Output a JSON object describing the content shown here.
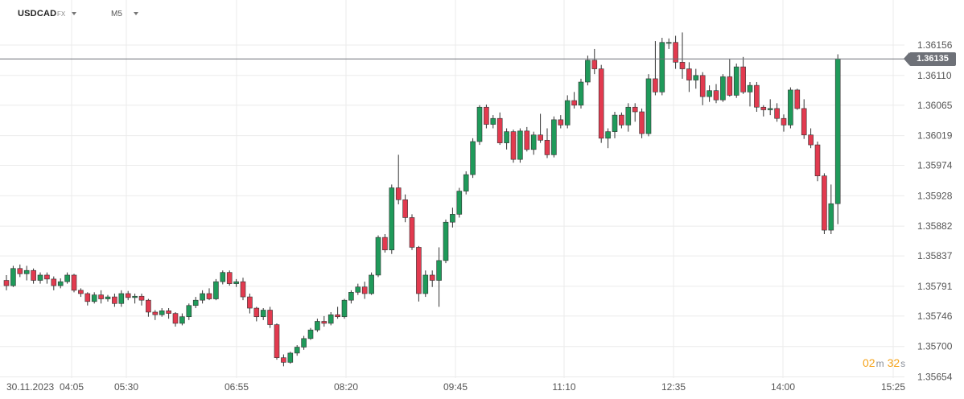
{
  "header": {
    "symbol": "USDCAD",
    "symbol_type": "FX",
    "timeframe": "M5"
  },
  "current_price": "1.36135",
  "countdown": {
    "minutes": "02",
    "minutes_unit": "m",
    "seconds": "32",
    "seconds_unit": "s"
  },
  "colors": {
    "up": "#1f9a5a",
    "down": "#e23a4f",
    "price_line": "#6e7178",
    "grid": "#ebebeb"
  },
  "chart_data": {
    "type": "candlestick",
    "instrument": "USDCAD",
    "interval": "M5",
    "y_ticks": [
      "1.36156",
      "1.36110",
      "1.36065",
      "1.36019",
      "1.35974",
      "1.35928",
      "1.35882",
      "1.35837",
      "1.35791",
      "1.35746",
      "1.35700",
      "1.35654"
    ],
    "ylim": [
      1.3564,
      1.3618
    ],
    "x_ticks": [
      "30.11.2023",
      "04:05",
      "05:30",
      "06:55",
      "08:20",
      "09:45",
      "11:10",
      "12:35",
      "14:00",
      "15:25"
    ],
    "last_price": 1.36135,
    "grid": true,
    "candles": [
      [
        1.358,
        1.35808,
        1.35785,
        1.35792
      ],
      [
        1.35792,
        1.35822,
        1.3579,
        1.35818
      ],
      [
        1.35818,
        1.35824,
        1.35805,
        1.3581
      ],
      [
        1.3581,
        1.35822,
        1.358,
        1.35815
      ],
      [
        1.35815,
        1.35818,
        1.35795,
        1.358
      ],
      [
        1.358,
        1.35812,
        1.35795,
        1.35808
      ],
      [
        1.35808,
        1.35812,
        1.35795,
        1.35802
      ],
      [
        1.35802,
        1.35806,
        1.35785,
        1.35792
      ],
      [
        1.35792,
        1.35803,
        1.35788,
        1.35798
      ],
      [
        1.35798,
        1.35812,
        1.35795,
        1.35808
      ],
      [
        1.35808,
        1.3581,
        1.35782,
        1.35785
      ],
      [
        1.35785,
        1.35788,
        1.35775,
        1.3578
      ],
      [
        1.3578,
        1.35782,
        1.35762,
        1.35768
      ],
      [
        1.35768,
        1.35782,
        1.35765,
        1.35778
      ],
      [
        1.35778,
        1.35785,
        1.35765,
        1.35772
      ],
      [
        1.35772,
        1.35778,
        1.35768,
        1.35775
      ],
      [
        1.35775,
        1.3578,
        1.3576,
        1.35765
      ],
      [
        1.35765,
        1.35785,
        1.3576,
        1.3578
      ],
      [
        1.3578,
        1.35784,
        1.3577,
        1.35774
      ],
      [
        1.35774,
        1.3578,
        1.35765,
        1.35776
      ],
      [
        1.35776,
        1.3578,
        1.35762,
        1.3577
      ],
      [
        1.3577,
        1.35772,
        1.35745,
        1.35752
      ],
      [
        1.35752,
        1.35755,
        1.3574,
        1.35748
      ],
      [
        1.35748,
        1.35758,
        1.35745,
        1.35754
      ],
      [
        1.35754,
        1.35758,
        1.35742,
        1.3575
      ],
      [
        1.3575,
        1.35752,
        1.3573,
        1.35735
      ],
      [
        1.35735,
        1.3575,
        1.35732,
        1.35745
      ],
      [
        1.35745,
        1.35765,
        1.3574,
        1.35762
      ],
      [
        1.35762,
        1.35775,
        1.35758,
        1.3577
      ],
      [
        1.3577,
        1.35785,
        1.35765,
        1.3578
      ],
      [
        1.3578,
        1.35788,
        1.3577,
        1.35772
      ],
      [
        1.35772,
        1.35802,
        1.3577,
        1.35798
      ],
      [
        1.35798,
        1.35815,
        1.35794,
        1.35812
      ],
      [
        1.35812,
        1.35815,
        1.35792,
        1.35795
      ],
      [
        1.35795,
        1.35802,
        1.3579,
        1.35798
      ],
      [
        1.35798,
        1.35804,
        1.3577,
        1.35775
      ],
      [
        1.35775,
        1.3578,
        1.3575,
        1.35758
      ],
      [
        1.35758,
        1.3576,
        1.35738,
        1.35745
      ],
      [
        1.35745,
        1.35758,
        1.3574,
        1.35755
      ],
      [
        1.35755,
        1.3576,
        1.35728,
        1.35733
      ],
      [
        1.35733,
        1.35735,
        1.3568,
        1.35683
      ],
      [
        1.35683,
        1.35688,
        1.3567,
        1.35676
      ],
      [
        1.35676,
        1.35692,
        1.35674,
        1.3569
      ],
      [
        1.3569,
        1.35702,
        1.35686,
        1.35699
      ],
      [
        1.35699,
        1.35716,
        1.35695,
        1.35712
      ],
      [
        1.35712,
        1.35728,
        1.3571,
        1.35725
      ],
      [
        1.35725,
        1.35742,
        1.35722,
        1.35738
      ],
      [
        1.35738,
        1.35746,
        1.3573,
        1.35735
      ],
      [
        1.35735,
        1.35752,
        1.35732,
        1.35748
      ],
      [
        1.35748,
        1.3576,
        1.35742,
        1.35745
      ],
      [
        1.35745,
        1.35772,
        1.35742,
        1.3577
      ],
      [
        1.3577,
        1.35785,
        1.35765,
        1.35782
      ],
      [
        1.35782,
        1.35795,
        1.35778,
        1.3579
      ],
      [
        1.3579,
        1.35798,
        1.35772,
        1.3578
      ],
      [
        1.3578,
        1.35812,
        1.35778,
        1.35808
      ],
      [
        1.35808,
        1.35868,
        1.35805,
        1.35865
      ],
      [
        1.35865,
        1.3587,
        1.35842,
        1.35846
      ],
      [
        1.35846,
        1.35945,
        1.3584,
        1.3594
      ],
      [
        1.3594,
        1.3599,
        1.35915,
        1.35922
      ],
      [
        1.35922,
        1.3593,
        1.35888,
        1.35895
      ],
      [
        1.35895,
        1.359,
        1.35846,
        1.3585
      ],
      [
        1.3585,
        1.35852,
        1.35768,
        1.3578
      ],
      [
        1.3578,
        1.35815,
        1.35775,
        1.35808
      ],
      [
        1.35808,
        1.35815,
        1.3579,
        1.358
      ],
      [
        1.358,
        1.3585,
        1.3576,
        1.3583
      ],
      [
        1.3583,
        1.35892,
        1.35826,
        1.35888
      ],
      [
        1.35888,
        1.3591,
        1.3588,
        1.359
      ],
      [
        1.359,
        1.3594,
        1.35895,
        1.35935
      ],
      [
        1.35935,
        1.35965,
        1.3593,
        1.3596
      ],
      [
        1.3596,
        1.36015,
        1.35955,
        1.3601
      ],
      [
        1.3601,
        1.36065,
        1.36005,
        1.36062
      ],
      [
        1.36062,
        1.36066,
        1.3603,
        1.36036
      ],
      [
        1.36036,
        1.3605,
        1.3603,
        1.36045
      ],
      [
        1.36045,
        1.36054,
        1.36005,
        1.36008
      ],
      [
        1.36008,
        1.3603,
        1.35998,
        1.36025
      ],
      [
        1.36025,
        1.36028,
        1.35978,
        1.35983
      ],
      [
        1.35983,
        1.3603,
        1.35978,
        1.36026
      ],
      [
        1.36026,
        1.36032,
        1.35995,
        1.35998
      ],
      [
        1.35998,
        1.36025,
        1.3599,
        1.3602
      ],
      [
        1.3602,
        1.36052,
        1.36008,
        1.36012
      ],
      [
        1.36012,
        1.3603,
        1.35985,
        1.3599
      ],
      [
        1.3599,
        1.36048,
        1.35986,
        1.36043
      ],
      [
        1.36043,
        1.3605,
        1.3603,
        1.36035
      ],
      [
        1.36035,
        1.3608,
        1.3603,
        1.36072
      ],
      [
        1.36072,
        1.36085,
        1.3606,
        1.36065
      ],
      [
        1.36065,
        1.36105,
        1.3606,
        1.361
      ],
      [
        1.361,
        1.3614,
        1.36095,
        1.36133
      ],
      [
        1.36133,
        1.3615,
        1.36112,
        1.3612
      ],
      [
        1.3612,
        1.36126,
        1.36008,
        1.36015
      ],
      [
        1.36015,
        1.3603,
        1.36,
        1.36025
      ],
      [
        1.36025,
        1.36055,
        1.36015,
        1.3605
      ],
      [
        1.3605,
        1.36054,
        1.3603,
        1.36035
      ],
      [
        1.36035,
        1.36068,
        1.36025,
        1.36062
      ],
      [
        1.36062,
        1.36068,
        1.3604,
        1.36055
      ],
      [
        1.36055,
        1.3606,
        1.36015,
        1.36022
      ],
      [
        1.36022,
        1.36112,
        1.36018,
        1.36105
      ],
      [
        1.36105,
        1.36162,
        1.3608,
        1.36085
      ],
      [
        1.36085,
        1.36167,
        1.3608,
        1.3616
      ],
      [
        1.3616,
        1.36166,
        1.3615,
        1.3616
      ],
      [
        1.3616,
        1.3617,
        1.3612,
        1.3613
      ],
      [
        1.3613,
        1.36175,
        1.36105,
        1.3612
      ],
      [
        1.3612,
        1.3613,
        1.36085,
        1.36103
      ],
      [
        1.36103,
        1.3612,
        1.3609,
        1.3611
      ],
      [
        1.3611,
        1.36115,
        1.36065,
        1.36078
      ],
      [
        1.36078,
        1.36095,
        1.3607,
        1.36087
      ],
      [
        1.36087,
        1.36097,
        1.36068,
        1.36073
      ],
      [
        1.36073,
        1.36112,
        1.3607,
        1.36108
      ],
      [
        1.36108,
        1.36135,
        1.36078,
        1.3608
      ],
      [
        1.3608,
        1.36128,
        1.36076,
        1.36123
      ],
      [
        1.36123,
        1.36138,
        1.36082,
        1.36085
      ],
      [
        1.36085,
        1.361,
        1.36063,
        1.36095
      ],
      [
        1.36095,
        1.361,
        1.36055,
        1.36062
      ],
      [
        1.36062,
        1.36065,
        1.36048,
        1.36058
      ],
      [
        1.36058,
        1.36074,
        1.3605,
        1.3606
      ],
      [
        1.3606,
        1.36068,
        1.3604,
        1.36045
      ],
      [
        1.36045,
        1.36051,
        1.36025,
        1.36035
      ],
      [
        1.36035,
        1.36092,
        1.3603,
        1.36088
      ],
      [
        1.36088,
        1.3609,
        1.36058,
        1.3606
      ],
      [
        1.3606,
        1.36074,
        1.36014,
        1.3602
      ],
      [
        1.3602,
        1.3603,
        1.36,
        1.36005
      ],
      [
        1.36005,
        1.3601,
        1.3595,
        1.35958
      ],
      [
        1.35958,
        1.35962,
        1.3587,
        1.35876
      ],
      [
        1.35876,
        1.35945,
        1.3587,
        1.35916
      ],
      [
        1.35916,
        1.36142,
        1.35885,
        1.36135
      ]
    ]
  }
}
